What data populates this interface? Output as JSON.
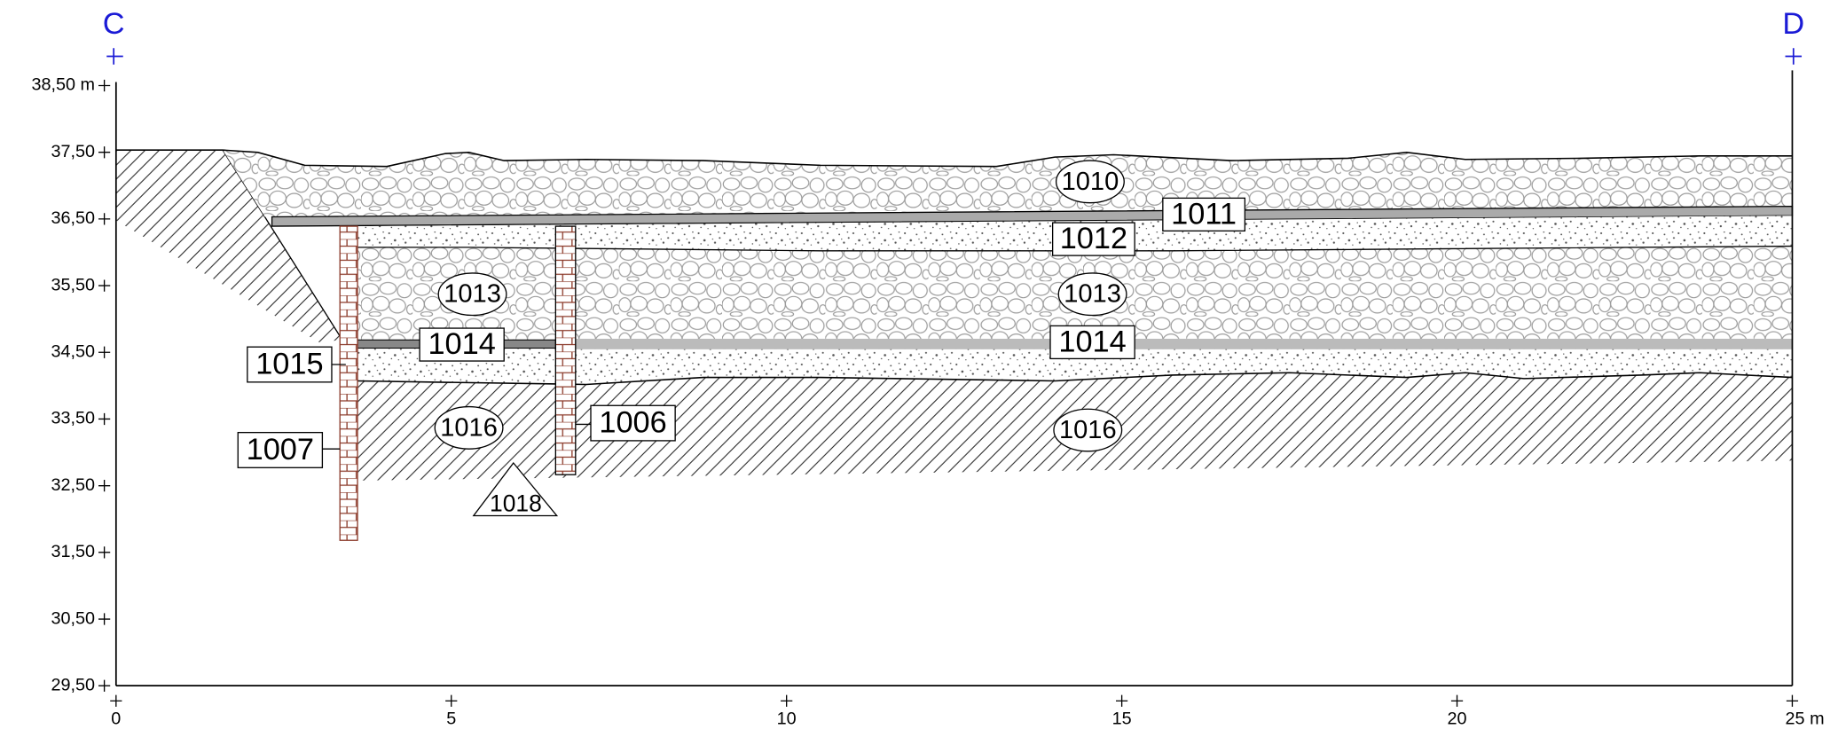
{
  "section": {
    "start_marker": "C",
    "end_marker": "D"
  },
  "y_axis": {
    "labels": [
      "38,50 m",
      "37,50",
      "36,50",
      "35,50",
      "34,50",
      "33,50",
      "32,50",
      "31,50",
      "30,50",
      "29,50"
    ]
  },
  "x_axis": {
    "labels": [
      "0",
      "5",
      "10",
      "15",
      "20",
      "25 m"
    ]
  },
  "contexts": {
    "c1010": "1010",
    "c1011": "1011",
    "c1012": "1012",
    "c1013_left": "1013",
    "c1013_right": "1013",
    "c1014_left": "1014",
    "c1014_right": "1014",
    "c1015": "1015",
    "c1016_left": "1016",
    "c1016_right": "1016",
    "c1007": "1007",
    "c1006": "1006",
    "c1018": "1018"
  }
}
